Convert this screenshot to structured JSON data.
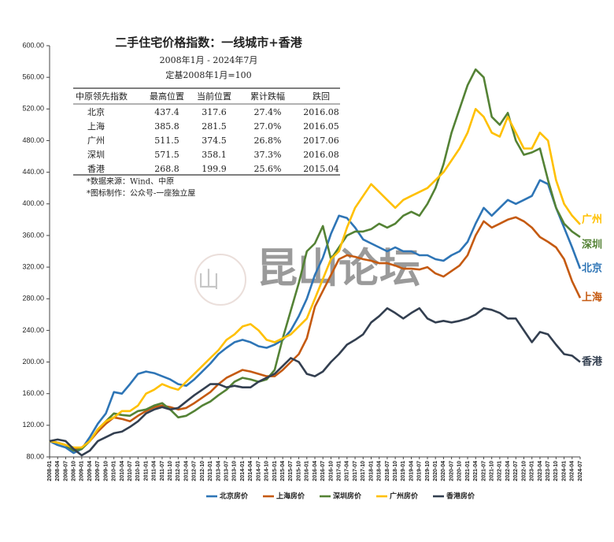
{
  "chart_data": {
    "type": "line",
    "title": "二手住宅价格指数：一线城市+香港",
    "subtitle": [
      "2008年1月 - 2024年7月",
      "定基2008年1月=100"
    ],
    "table": {
      "headers": [
        "中原领先指数",
        "最高位置",
        "当前位置",
        "累计跌幅",
        "跌回"
      ],
      "rows": [
        [
          "北京",
          "437.4",
          "317.6",
          "27.4%",
          "2016.08"
        ],
        [
          "上海",
          "385.8",
          "281.5",
          "27.0%",
          "2016.05"
        ],
        [
          "广州",
          "511.5",
          "374.5",
          "26.8%",
          "2017.06"
        ],
        [
          "深圳",
          "571.5",
          "358.1",
          "37.3%",
          "2016.08"
        ],
        [
          "香港",
          "268.8",
          "199.9",
          "25.6%",
          "2015.04"
        ]
      ]
    },
    "notes": [
      "*数据来源：Wind、中原",
      "*图标制作：公众号-一座独立屋"
    ],
    "watermark": "昆山论坛",
    "categories": [
      "2008-01",
      "2008-04",
      "2008-07",
      "2008-10",
      "2009-01",
      "2009-04",
      "2009-07",
      "2009-10",
      "2010-01",
      "2010-04",
      "2010-07",
      "2010-10",
      "2011-01",
      "2011-04",
      "2011-07",
      "2011-10",
      "2012-01",
      "2012-04",
      "2012-07",
      "2012-10",
      "2013-01",
      "2013-04",
      "2013-07",
      "2013-10",
      "2014-01",
      "2014-04",
      "2014-07",
      "2014-10",
      "2015-01",
      "2015-04",
      "2015-07",
      "2015-10",
      "2016-01",
      "2016-04",
      "2016-07",
      "2016-10",
      "2017-01",
      "2017-04",
      "2017-07",
      "2017-10",
      "2018-01",
      "2018-04",
      "2018-07",
      "2018-10",
      "2019-01",
      "2019-04",
      "2019-07",
      "2019-10",
      "2020-01",
      "2020-04",
      "2020-07",
      "2020-10",
      "2021-01",
      "2021-04",
      "2021-07",
      "2021-10",
      "2022-01",
      "2022-04",
      "2022-07",
      "2022-10",
      "2023-01",
      "2023-04",
      "2023-07",
      "2023-10",
      "2024-01",
      "2024-04",
      "2024-07"
    ],
    "series": [
      {
        "name": "北京房价",
        "end_label": "北京",
        "color": "#2e75b6",
        "values": [
          100,
          95,
          92,
          85,
          90,
          105,
          122,
          135,
          162,
          160,
          172,
          185,
          188,
          186,
          182,
          178,
          172,
          170,
          178,
          188,
          198,
          210,
          218,
          225,
          228,
          225,
          220,
          218,
          222,
          228,
          240,
          258,
          280,
          310,
          332,
          362,
          385,
          382,
          370,
          355,
          350,
          345,
          340,
          345,
          340,
          340,
          335,
          335,
          330,
          328,
          335,
          340,
          352,
          375,
          395,
          385,
          395,
          405,
          400,
          405,
          410,
          430,
          425,
          395,
          370,
          345,
          318
        ]
      },
      {
        "name": "上海房价",
        "end_label": "上海",
        "color": "#c55a11",
        "values": [
          100,
          98,
          95,
          90,
          92,
          100,
          112,
          122,
          130,
          128,
          125,
          132,
          138,
          143,
          145,
          143,
          140,
          142,
          148,
          155,
          162,
          172,
          180,
          185,
          190,
          188,
          185,
          182,
          182,
          190,
          200,
          210,
          230,
          270,
          290,
          310,
          330,
          335,
          333,
          330,
          328,
          325,
          325,
          322,
          318,
          318,
          317,
          320,
          312,
          308,
          315,
          322,
          335,
          360,
          378,
          370,
          375,
          380,
          383,
          378,
          370,
          358,
          352,
          345,
          330,
          302,
          281
        ]
      },
      {
        "name": "深圳房价",
        "end_label": "深圳",
        "color": "#548235",
        "values": [
          100,
          98,
          95,
          88,
          90,
          100,
          115,
          125,
          135,
          133,
          132,
          138,
          140,
          145,
          148,
          140,
          130,
          132,
          138,
          145,
          150,
          158,
          165,
          175,
          180,
          178,
          175,
          178,
          190,
          230,
          265,
          300,
          340,
          350,
          372,
          330,
          345,
          360,
          365,
          365,
          368,
          375,
          370,
          375,
          385,
          390,
          385,
          400,
          420,
          450,
          490,
          520,
          550,
          570,
          560,
          510,
          500,
          515,
          480,
          462,
          465,
          470,
          430,
          395,
          375,
          365,
          358
        ]
      },
      {
        "name": "广州房价",
        "end_label": "广州",
        "color": "#ffc000",
        "values": [
          100,
          98,
          95,
          92,
          92,
          100,
          115,
          125,
          130,
          138,
          138,
          145,
          160,
          165,
          172,
          168,
          165,
          175,
          185,
          195,
          205,
          215,
          228,
          235,
          245,
          248,
          240,
          228,
          225,
          230,
          235,
          245,
          255,
          280,
          305,
          330,
          340,
          370,
          395,
          410,
          425,
          415,
          405,
          395,
          405,
          410,
          415,
          420,
          430,
          440,
          455,
          470,
          490,
          520,
          510,
          490,
          485,
          510,
          490,
          470,
          470,
          490,
          480,
          430,
          400,
          385,
          374
        ]
      },
      {
        "name": "香港房价",
        "end_label": "香港",
        "color": "#333f50",
        "values": [
          100,
          102,
          100,
          90,
          82,
          88,
          100,
          105,
          110,
          112,
          118,
          125,
          135,
          140,
          143,
          140,
          142,
          150,
          158,
          165,
          172,
          172,
          168,
          170,
          168,
          168,
          175,
          180,
          185,
          195,
          205,
          200,
          185,
          182,
          188,
          200,
          210,
          222,
          228,
          235,
          250,
          258,
          268,
          262,
          255,
          262,
          268,
          255,
          250,
          252,
          250,
          252,
          255,
          260,
          268,
          266,
          262,
          255,
          255,
          240,
          225,
          238,
          235,
          222,
          210,
          208,
          200
        ]
      }
    ],
    "ylim": [
      80,
      600
    ],
    "yticks": [
      {
        "value": 80,
        "label": "80.00"
      },
      {
        "value": 120,
        "label": "120.00"
      },
      {
        "value": 160,
        "label": "160.00"
      },
      {
        "value": 200,
        "label": "200.00"
      },
      {
        "value": 240,
        "label": "240.00"
      },
      {
        "value": 280,
        "label": "280.00"
      },
      {
        "value": 320,
        "label": "320.00"
      },
      {
        "value": 360,
        "label": "360.00"
      },
      {
        "value": 400,
        "label": "400.00"
      },
      {
        "value": 440,
        "label": "440.00"
      },
      {
        "value": 480,
        "label": "480.00"
      },
      {
        "value": 520,
        "label": "520.00"
      },
      {
        "value": 560,
        "label": "560.00"
      },
      {
        "value": 600,
        "label": "600.00"
      }
    ],
    "grid": false
  }
}
